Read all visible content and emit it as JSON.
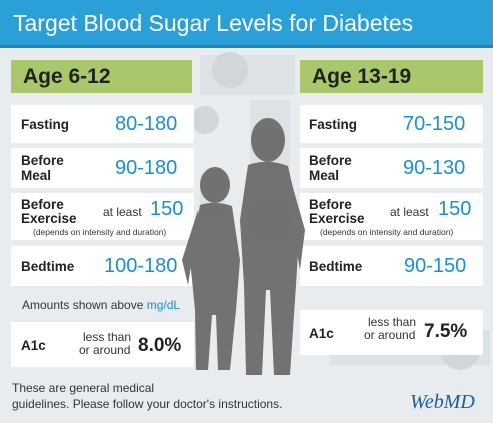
{
  "title": "Target Blood Sugar Levels for Diabetes",
  "left": {
    "age": "Age 6-12",
    "fasting": {
      "label": "Fasting",
      "value": "80-180"
    },
    "before_meal": {
      "label1": "Before",
      "label2": "Meal",
      "value": "90-180"
    },
    "before_exercise": {
      "label1": "Before",
      "label2": "Exercise",
      "prefix": "at least",
      "value": "150",
      "note": "(depends on intensity and duration)"
    },
    "bedtime": {
      "label": "Bedtime",
      "value": "100-180"
    },
    "a1c": {
      "label": "A1c",
      "pre1": "less than",
      "pre2": "or around",
      "value": "8.0%"
    }
  },
  "right": {
    "age": "Age 13-19",
    "fasting": {
      "label": "Fasting",
      "value": "70-150"
    },
    "before_meal": {
      "label1": "Before",
      "label2": "Meal",
      "value": "90-130"
    },
    "before_exercise": {
      "label1": "Before",
      "label2": "Exercise",
      "prefix": "at least",
      "value": "150",
      "note": "(depends on intensity and duration)"
    },
    "bedtime": {
      "label": "Bedtime",
      "value": "90-150"
    },
    "a1c": {
      "label": "A1c",
      "pre1": "less than",
      "pre2": "or around",
      "value": "7.5%"
    }
  },
  "amounts": {
    "text": "Amounts shown above",
    "unit": "mg/dL"
  },
  "footer": {
    "line1": "These are general medical",
    "line2": "guidelines. Please follow your doctor's instructions."
  },
  "logo": "WebMD",
  "colors": {
    "header": "#2a9fd8",
    "age_tab": "#a8c86b",
    "value": "#1b8fd0"
  }
}
